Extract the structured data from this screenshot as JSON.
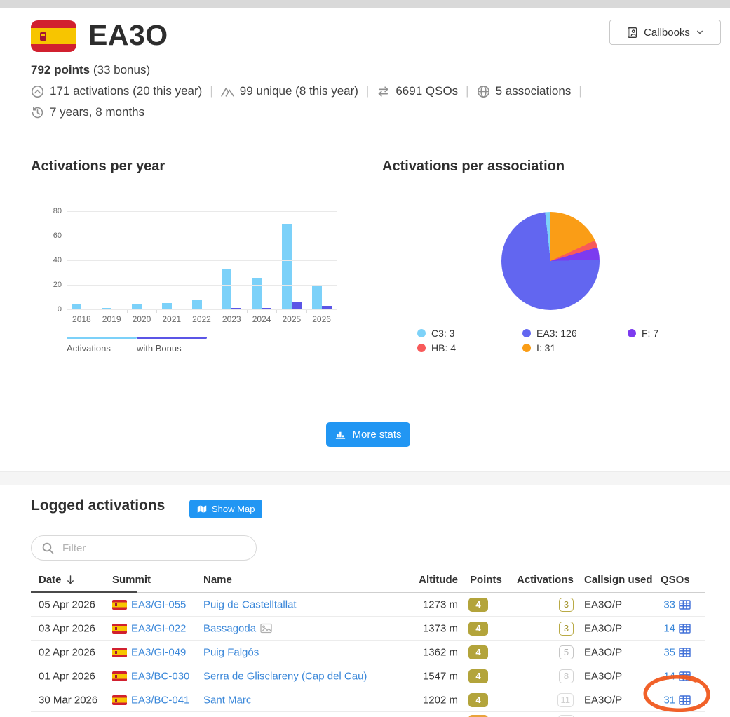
{
  "header": {
    "callsign": "EA3O",
    "callbooks_label": "Callbooks",
    "points_main": "792 points",
    "points_bonus": "(33 bonus)",
    "stats_line1": [
      {
        "icon": "chevron-up-circle",
        "text": "171 activations (20 this year)"
      },
      {
        "icon": "mountains",
        "text": "99 unique (8 this year)"
      },
      {
        "icon": "swap-arrows",
        "text": "6691 QSOs"
      },
      {
        "icon": "globe",
        "text": "5 associations"
      }
    ],
    "stats_line2": [
      {
        "icon": "history",
        "text": "7 years, 8 months"
      }
    ]
  },
  "chart_data": [
    {
      "type": "bar",
      "title": "Activations per year",
      "categories": [
        "2018",
        "2019",
        "2020",
        "2021",
        "2022",
        "2023",
        "2024",
        "2025",
        "2026"
      ],
      "series": [
        {
          "name": "Activations",
          "color": "#7cd1f9",
          "values": [
            4,
            1,
            4,
            5,
            8,
            33,
            26,
            70,
            20
          ]
        },
        {
          "name": "with Bonus",
          "color": "#5b55e6",
          "values": [
            0,
            0,
            0,
            0,
            0,
            1,
            1,
            6,
            3
          ]
        }
      ],
      "ylim": [
        0,
        80
      ],
      "yticks": [
        0,
        20,
        40,
        60,
        80
      ],
      "grid": true,
      "legend_position": "bottom-left"
    },
    {
      "type": "pie",
      "title": "Activations per association",
      "slices": [
        {
          "label": "C3",
          "value": 3,
          "color": "#7dd2f8"
        },
        {
          "label": "HB",
          "value": 4,
          "color": "#f85a5a"
        },
        {
          "label": "EA3",
          "value": 126,
          "color": "#6266f0"
        },
        {
          "label": "I",
          "value": 31,
          "color": "#fa9d16"
        },
        {
          "label": "F",
          "value": 7,
          "color": "#7c3bef"
        }
      ],
      "draw_order": [
        "I",
        "HB",
        "F",
        "EA3",
        "C3"
      ],
      "legend_columns": 3,
      "legend_position": "bottom"
    }
  ],
  "more_stats_label": "More stats",
  "logged": {
    "title": "Logged activations",
    "show_map_label": "Show Map",
    "filter_placeholder": "Filter",
    "columns": {
      "date": "Date",
      "summit": "Summit",
      "name": "Name",
      "altitude": "Altitude",
      "points": "Points",
      "activations": "Activations",
      "callsign": "Callsign used",
      "qsos": "QSOs"
    },
    "rows": [
      {
        "date": "05 Apr 2026",
        "summit": "EA3/GI-055",
        "name": "Puig de Castelltallat",
        "has_photo": false,
        "altitude": "1273 m",
        "points": "4",
        "activations": "3",
        "act_style": "olive",
        "callsign": "EA3O/P",
        "qsos": "33",
        "annotated": false
      },
      {
        "date": "03 Apr 2026",
        "summit": "EA3/GI-022",
        "name": "Bassagoda",
        "has_photo": true,
        "altitude": "1373 m",
        "points": "4",
        "activations": "3",
        "act_style": "olive",
        "callsign": "EA3O/P",
        "qsos": "14",
        "annotated": false
      },
      {
        "date": "02 Apr 2026",
        "summit": "EA3/GI-049",
        "name": "Puig Falgós",
        "has_photo": false,
        "altitude": "1362 m",
        "points": "4",
        "activations": "5",
        "act_style": "g1",
        "callsign": "EA3O/P",
        "qsos": "35",
        "annotated": false
      },
      {
        "date": "01 Apr 2026",
        "summit": "EA3/BC-030",
        "name": "Serra de Glisclareny (Cap del Cau)",
        "has_photo": false,
        "altitude": "1547 m",
        "points": "4",
        "activations": "8",
        "act_style": "g2",
        "callsign": "EA3O/P",
        "qsos": "14",
        "annotated": false
      },
      {
        "date": "30 Mar 2026",
        "summit": "EA3/BC-041",
        "name": "Sant Marc",
        "has_photo": false,
        "altitude": "1202 m",
        "points": "4",
        "activations": "11",
        "act_style": "g3",
        "callsign": "EA3O/P",
        "qsos": "31",
        "annotated": true
      }
    ],
    "partial_next_row": {
      "points_color": "#e9a33c"
    }
  },
  "colors": {
    "accent_blue": "#2196f3",
    "link_blue": "#3a87d9",
    "qso_blue": "#3f6fd0",
    "points_olive": "#b3a43b",
    "annotation_orange": "#f0581e",
    "icon_gray": "#8f8f8f",
    "topbar_gray": "#d9d9d9"
  }
}
